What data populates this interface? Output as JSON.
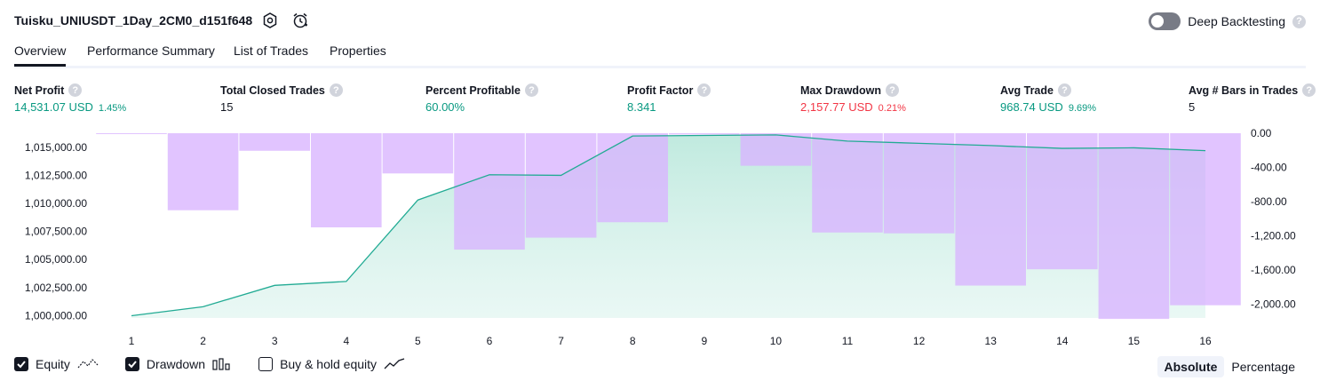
{
  "header": {
    "title": "Tuisku_UNIUSDT_1Day_2CM0_d151f648",
    "deep_backtesting_label": "Deep Backtesting",
    "deep_backtesting_on": false,
    "help_glyph": "?"
  },
  "tabs": [
    {
      "label": "Overview",
      "active": true
    },
    {
      "label": "Performance Summary",
      "active": false
    },
    {
      "label": "List of Trades",
      "active": false
    },
    {
      "label": "Properties",
      "active": false
    }
  ],
  "metrics": {
    "net_profit": {
      "label": "Net Profit",
      "value": "14,531.07 USD",
      "sub": "1.45%"
    },
    "total_closed_trades": {
      "label": "Total Closed Trades",
      "value": "15"
    },
    "percent_profitable": {
      "label": "Percent Profitable",
      "value": "60.00%"
    },
    "profit_factor": {
      "label": "Profit Factor",
      "value": "8.341"
    },
    "max_drawdown": {
      "label": "Max Drawdown",
      "value": "2,157.77 USD",
      "sub": "0.21%"
    },
    "avg_trade": {
      "label": "Avg Trade",
      "value": "968.74 USD",
      "sub": "9.69%"
    },
    "avg_bars": {
      "label": "Avg # Bars in Trades",
      "value": "5"
    }
  },
  "colors": {
    "positive": "#089981",
    "negative": "#f23645",
    "equity_line": "#22ab94",
    "drawdown_fill": "#d9b3ff"
  },
  "chart_data": {
    "type": "line",
    "x": [
      1,
      2,
      3,
      4,
      5,
      6,
      7,
      8,
      9,
      10,
      11,
      12,
      13,
      14,
      15,
      16
    ],
    "x_tick_labels": [
      "1",
      "2",
      "3",
      "4",
      "5",
      "6",
      "7",
      "8",
      "9",
      "10",
      "11",
      "12",
      "13",
      "14",
      "15",
      "16"
    ],
    "y_left_tick_labels": [
      "1,015,000.00",
      "1,012,500.00",
      "1,010,000.00",
      "1,007,500.00",
      "1,005,000.00",
      "1,002,500.00",
      "1,000,000.00"
    ],
    "y_left_ticks": [
      1015000,
      1012500,
      1010000,
      1007500,
      1005000,
      1002500,
      1000000
    ],
    "y_right_tick_labels": [
      "0.00",
      "-400.00",
      "-800.00",
      "-1,200.00",
      "-1,600.00",
      "-2,000.00"
    ],
    "y_right_ticks": [
      0,
      -400,
      -800,
      -1200,
      -1600,
      -2000
    ],
    "ylim_left": [
      999800,
      1016250
    ],
    "ylim_right": [
      -2200,
      0
    ],
    "series": [
      {
        "name": "Equity",
        "type": "area",
        "axis": "left",
        "values": [
          1000000,
          1000800,
          1002700,
          1003050,
          1010300,
          1012550,
          1012500,
          1016000,
          1016050,
          1016100,
          1015550,
          1015350,
          1015150,
          1014900,
          1014950,
          1014700
        ]
      },
      {
        "name": "Drawdown",
        "type": "bar",
        "axis": "right",
        "values": [
          -10,
          -900,
          -205,
          -1100,
          -470,
          -1360,
          -1220,
          -1040,
          -15,
          -380,
          -1160,
          -1170,
          -1780,
          -1590,
          -2170,
          -2010
        ]
      }
    ],
    "legend_items": [
      {
        "label": "Equity",
        "checked": true
      },
      {
        "label": "Drawdown",
        "checked": true
      },
      {
        "label": "Buy & hold equity",
        "checked": false
      }
    ],
    "grid": false
  },
  "mode": {
    "absolute_label": "Absolute",
    "percentage_label": "Percentage",
    "selected": "Absolute"
  }
}
